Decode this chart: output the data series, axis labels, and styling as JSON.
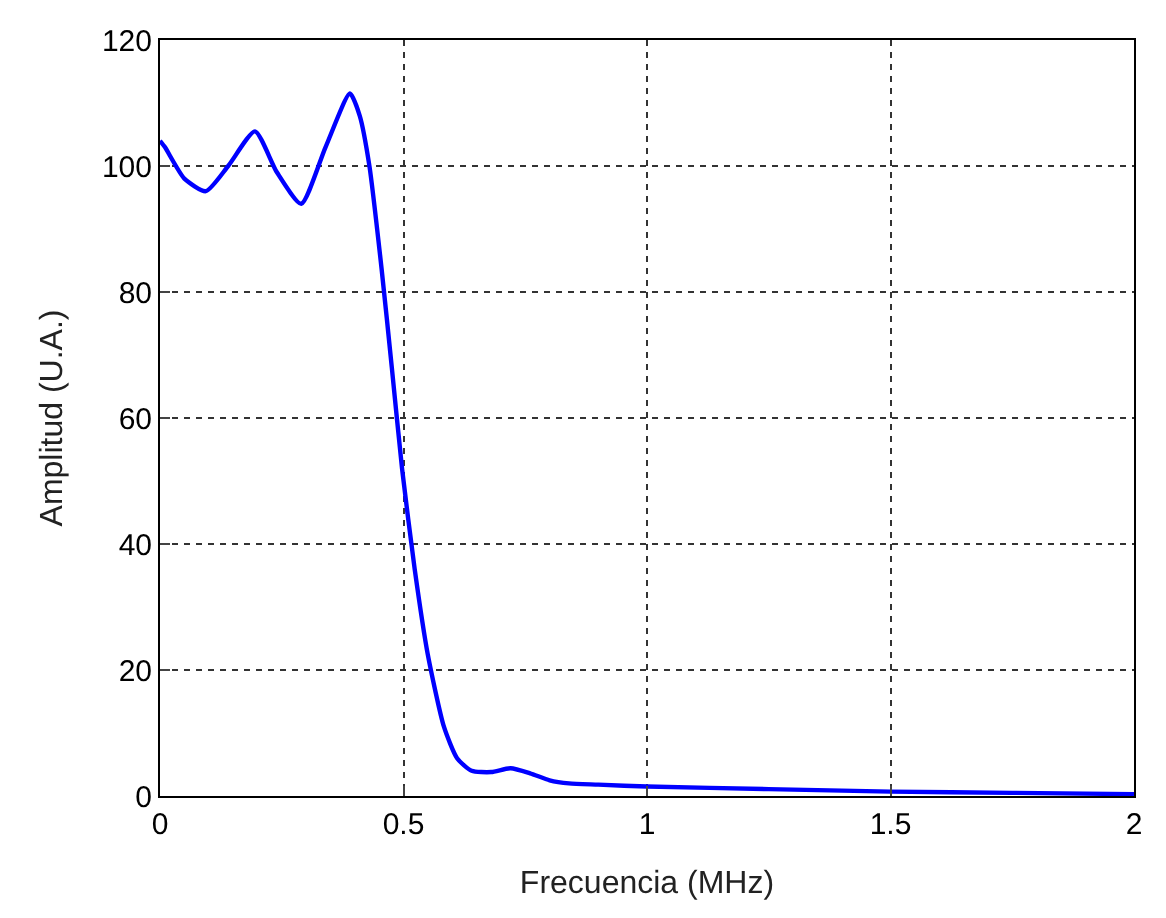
{
  "chart_data": {
    "type": "line",
    "xlabel": "Frecuencia (MHz)",
    "ylabel": "Amplitud (U.A.)",
    "x": [
      0,
      0.01,
      0.05,
      0.094,
      0.14,
      0.195,
      0.24,
      0.29,
      0.34,
      0.39,
      0.41,
      0.43,
      0.455,
      0.476,
      0.497,
      0.523,
      0.55,
      0.583,
      0.61,
      0.64,
      0.68,
      0.72,
      0.76,
      0.8,
      0.84,
      0.9,
      1,
      1.25,
      1.5,
      1.75,
      2
    ],
    "series": [
      {
        "color": "#0000ff",
        "values": [
          104,
          103,
          98,
          96,
          100,
          105.5,
          99,
          94,
          103,
          111.5,
          108,
          100,
          83.7,
          68,
          52,
          36,
          22.4,
          11,
          6,
          4,
          3.8,
          4.4,
          3.6,
          2.5,
          2,
          1.8,
          1.5,
          1.1,
          0.7,
          0.5,
          0.3
        ]
      }
    ],
    "xlim": [
      0,
      2
    ],
    "xticks": [
      0,
      0.5,
      1,
      1.5,
      2
    ],
    "ylim": [
      0,
      120
    ],
    "yticks": [
      0,
      20,
      40,
      60,
      80,
      100,
      120
    ],
    "grid": true,
    "line_style": "solid",
    "marker": "none"
  }
}
